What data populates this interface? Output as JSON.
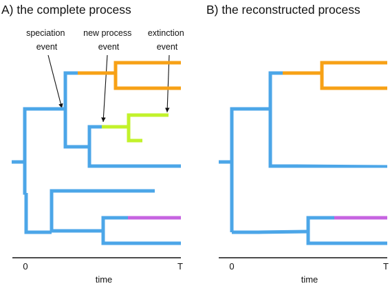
{
  "panel_a": {
    "title": "A) the complete process",
    "annotations": {
      "speciation": [
        "speciation",
        "event"
      ],
      "new_process": [
        "new process",
        "event"
      ],
      "extinction": [
        "extinction",
        "event"
      ]
    },
    "axis": {
      "tick_start": "0",
      "tick_end": "T",
      "label": "time"
    }
  },
  "panel_b": {
    "title": "B) the reconstructed process",
    "axis": {
      "tick_start": "0",
      "tick_end": "T",
      "label": "time"
    }
  },
  "colors": {
    "process_1": "#4ca6e8",
    "process_2": "#f7a116",
    "process_3_extinct": "#c2f22b",
    "process_4": "#c664e1"
  }
}
